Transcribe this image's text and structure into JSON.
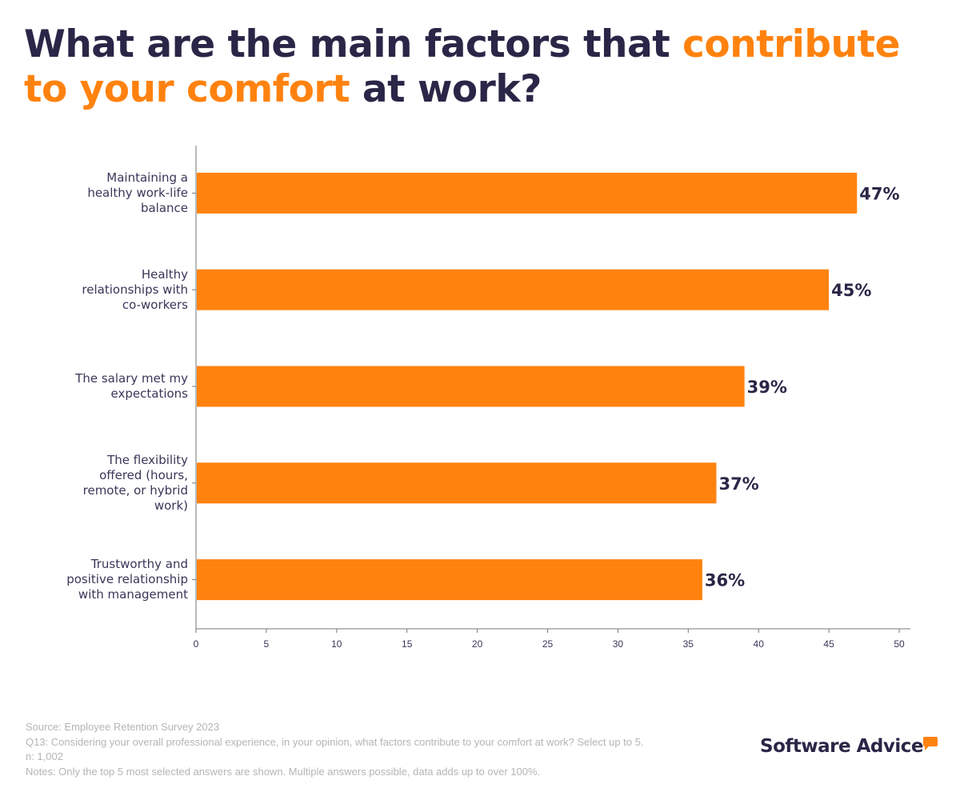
{
  "title": {
    "part1": "What are the main factors that ",
    "highlight1": "contribute to your comfort",
    "part2": " at work?"
  },
  "colors": {
    "bar": "#ff820f",
    "text": "#2a2647",
    "highlight": "#ff820f"
  },
  "chart_data": {
    "type": "bar",
    "orientation": "horizontal",
    "categories": [
      [
        "Maintaining a",
        "healthy work-life",
        "balance"
      ],
      [
        "Healthy",
        "relationships with",
        "co-workers"
      ],
      [
        "The salary met my",
        "expectations"
      ],
      [
        "The flexibility",
        "offered (hours,",
        "remote, or hybrid",
        "work)"
      ],
      [
        "Trustworthy and",
        "positive relationship",
        "with management"
      ]
    ],
    "values": [
      47,
      45,
      39,
      37,
      36
    ],
    "data_labels": [
      "47%",
      "45%",
      "39%",
      "37%",
      "36%"
    ],
    "xlim": [
      0,
      50
    ],
    "xticks": [
      0,
      5,
      10,
      15,
      20,
      25,
      30,
      35,
      40,
      45,
      50
    ],
    "grid": false
  },
  "footer": {
    "source": "Source: Employee Retention Survey 2023",
    "question": "Q13: Considering your overall professional experience, in your opinion, what factors contribute to your comfort at work? Select up to 5.",
    "n": "n: 1,002",
    "notes": "Notes: Only the top 5 most selected answers are shown. Multiple answers possible, data adds up to over 100%."
  },
  "logo": {
    "text": "Software Advice",
    "icon": "speech-bubble-icon"
  }
}
